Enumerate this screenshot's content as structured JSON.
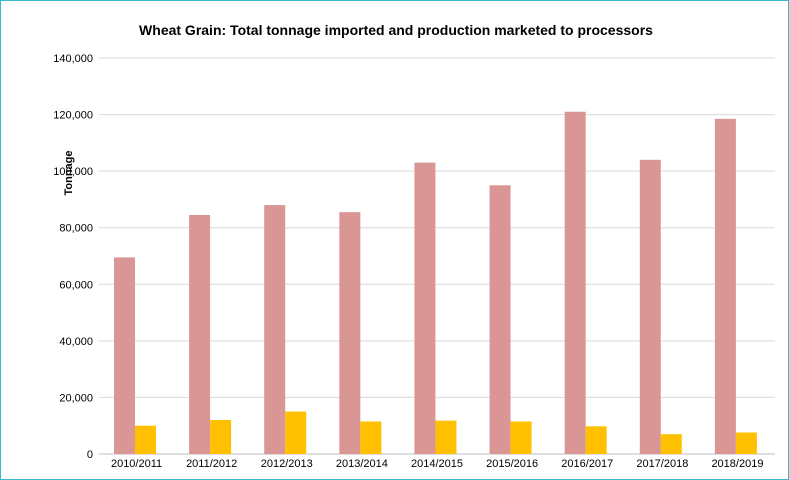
{
  "chart_data": {
    "type": "bar",
    "title": "Wheat Grain: Total tonnage imported and production marketed to processors",
    "xlabel": "",
    "ylabel": "Tonnage",
    "ylim": [
      0,
      140000
    ],
    "yticks": [
      "0",
      "20,000",
      "40,000",
      "60,000",
      "80,000",
      "100,000",
      "120,000",
      "140,000"
    ],
    "categories": [
      "2010/2011",
      "2011/2012",
      "2012/2013",
      "2013/2014",
      "2014/2015",
      "2015/2016",
      "2016/2017",
      "2017/2018",
      "2018/2019"
    ],
    "series": [
      {
        "color": "#d99694",
        "values": [
          69500,
          84500,
          88000,
          85500,
          103000,
          95000,
          121000,
          104000,
          118500
        ]
      },
      {
        "color": "#ffc000",
        "values": [
          10000,
          12000,
          15000,
          11500,
          11800,
          11500,
          9800,
          7000,
          7600
        ]
      }
    ],
    "grid": true,
    "legend": "none"
  }
}
